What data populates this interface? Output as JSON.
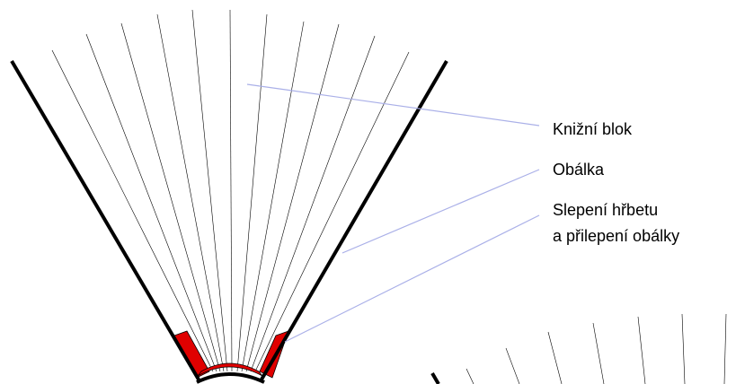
{
  "labels": {
    "book_block": "Knižní blok",
    "cover": "Obálka",
    "glue_line1": "Slepení hřbetu",
    "glue_line2": "a přilepení obálky"
  },
  "colors": {
    "page_lines": "#000000",
    "cover_lines": "#000000",
    "glue": "#e00000",
    "leader_lines": "#aab0e8",
    "label_text": "#000000",
    "background": "#ffffff"
  }
}
